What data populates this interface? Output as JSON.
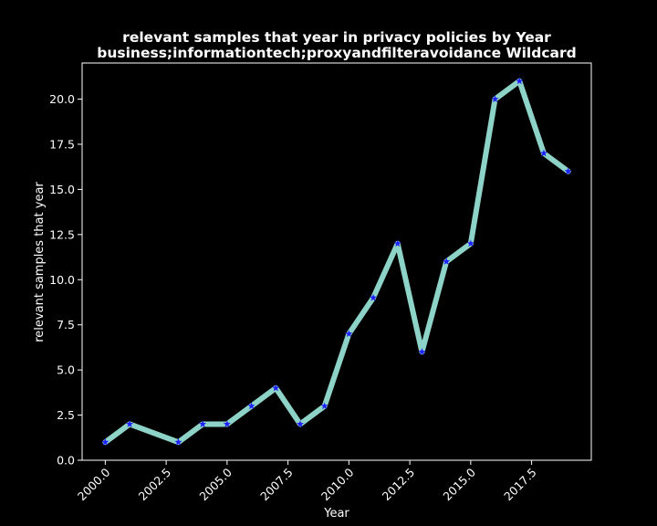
{
  "chart_data": {
    "type": "line",
    "title_line1": "relevant samples that year in privacy policies by Year",
    "title_line2": "business;informationtech;proxyandfilteravoidance Wildcard",
    "xlabel": "Year",
    "ylabel": "relevant samples that year",
    "x": [
      2000,
      2001,
      2003,
      2004,
      2005,
      2006,
      2007,
      2008,
      2009,
      2010,
      2011,
      2012,
      2013,
      2014,
      2015,
      2016,
      2017,
      2018,
      2019
    ],
    "y": [
      1,
      2,
      1,
      2,
      2,
      3,
      4,
      2,
      3,
      7,
      9,
      12,
      6,
      11,
      12,
      20,
      21,
      17,
      16
    ],
    "xlim": [
      1999.05,
      2019.95
    ],
    "ylim": [
      0,
      22
    ],
    "xticks": [
      "2000.0",
      "2002.5",
      "2005.0",
      "2007.5",
      "2010.0",
      "2012.5",
      "2015.0",
      "2017.5"
    ],
    "xtick_values": [
      2000,
      2002.5,
      2005,
      2007.5,
      2010,
      2012.5,
      2015,
      2017.5
    ],
    "yticks": [
      "0.0",
      "2.5",
      "5.0",
      "7.5",
      "10.0",
      "12.5",
      "15.0",
      "17.5",
      "20.0"
    ],
    "ytick_values": [
      0,
      2.5,
      5,
      7.5,
      10,
      12.5,
      15,
      17.5,
      20
    ],
    "line_color": "#8dd3c7",
    "marker_color": "#1f1fff",
    "background": "#000000",
    "grid": false,
    "legend": "none"
  }
}
